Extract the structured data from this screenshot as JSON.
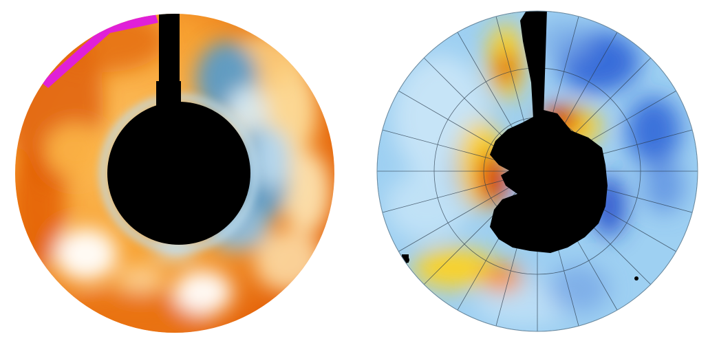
{
  "figure": {
    "panels": [
      {
        "id": "left",
        "projection": "south-polar-stereographic",
        "background_gradient": [
          "#d94f00",
          "#f07a10",
          "#fbb040",
          "#fff3d8"
        ],
        "anomaly_colors": {
          "cold": "#4a8fc0",
          "cold_light": "#bcdcef",
          "warm_light": "#ffffff",
          "overflow": "#e020d8"
        },
        "masked_color": "#000000"
      },
      {
        "id": "right",
        "projection": "south-polar-stereographic",
        "graticule": true,
        "colors": {
          "base": "#9ed0f2",
          "light": "#cfe8f8",
          "blue": "#2c62d6",
          "dark_blue": "#1030b8",
          "yellow": "#ffd21f",
          "orange": "#ff8a00",
          "red": "#d80000"
        },
        "masked_color": "#000000"
      }
    ]
  }
}
